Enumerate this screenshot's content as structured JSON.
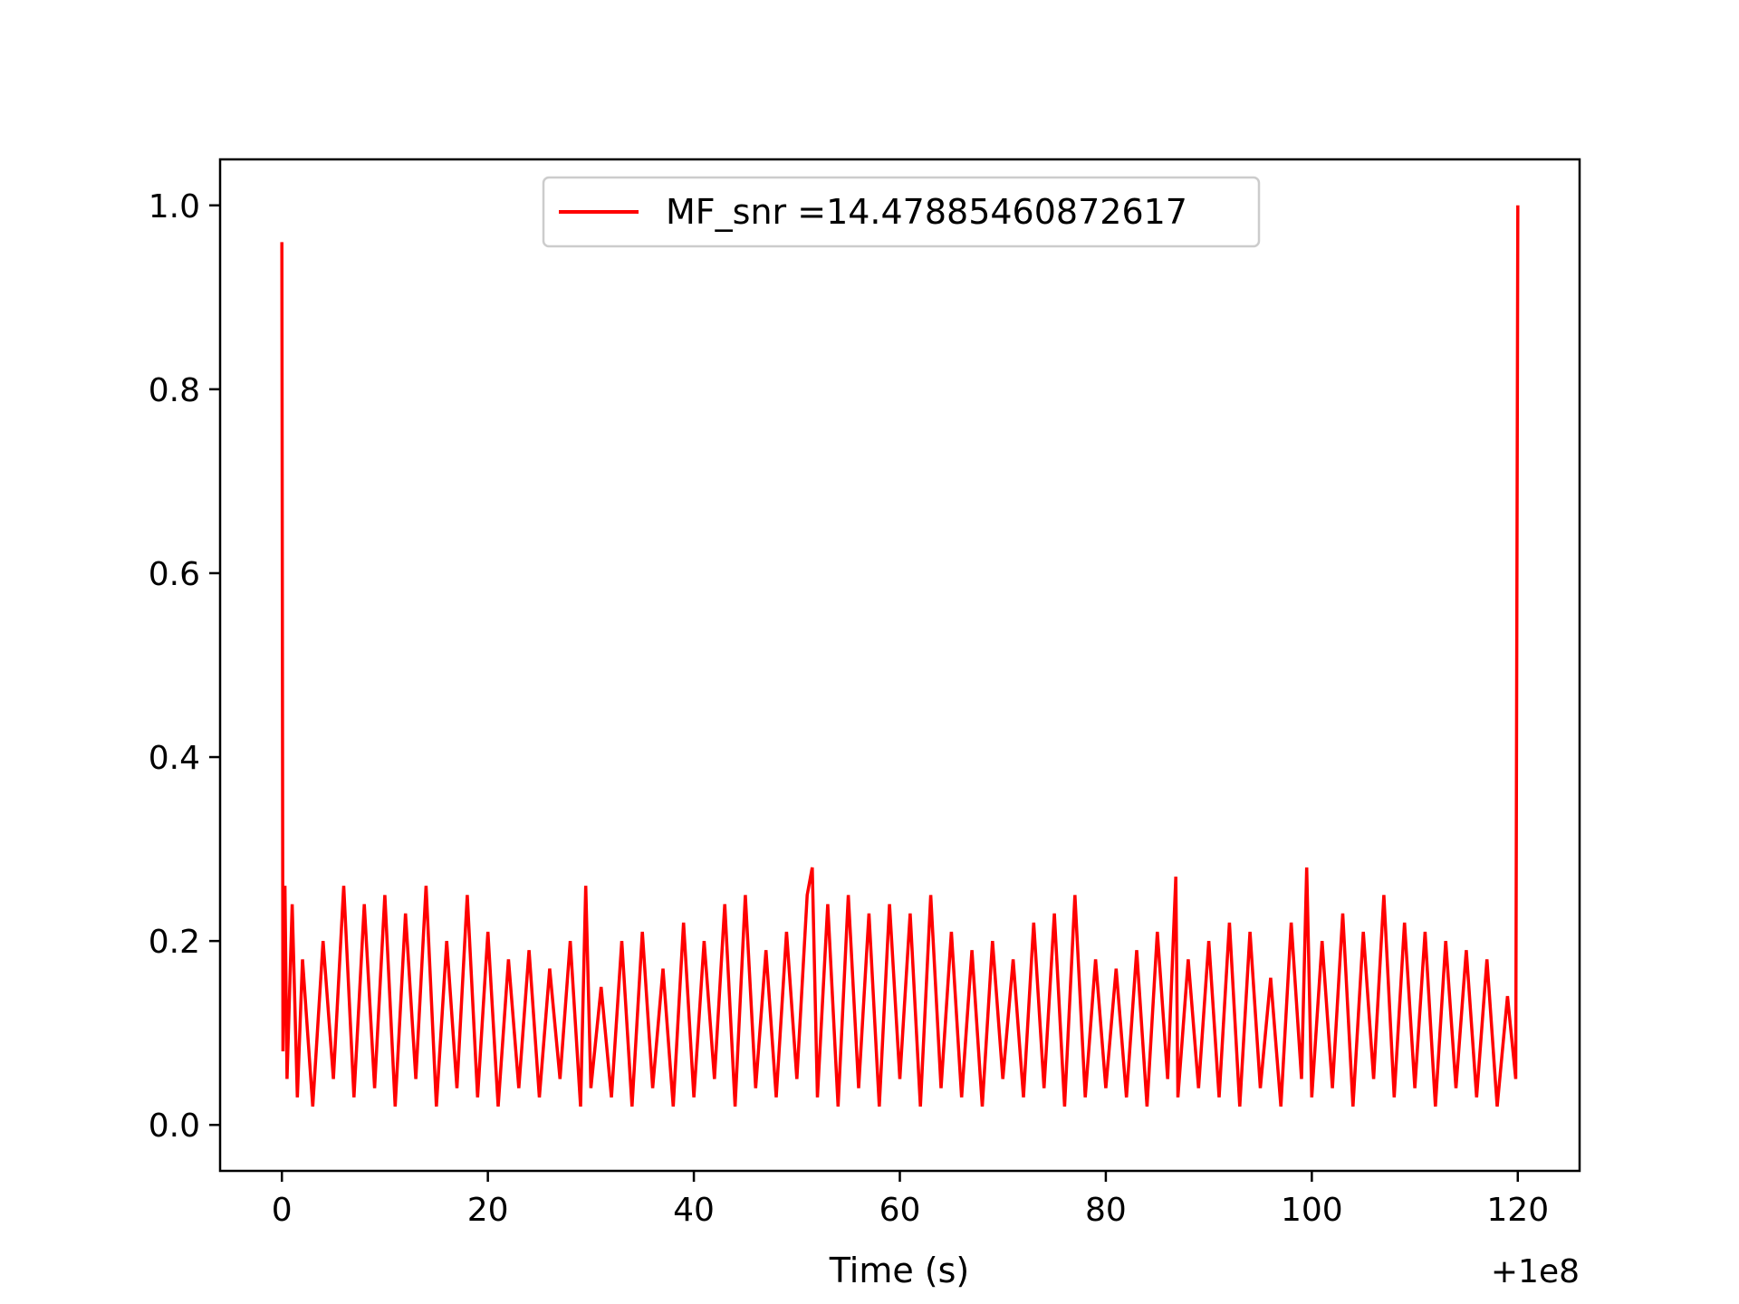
{
  "chart_data": {
    "type": "line",
    "title": "",
    "xlabel": "Time (s)",
    "ylabel": "",
    "x_offset_label": "+1e8",
    "xlim": [
      -6,
      126
    ],
    "ylim": [
      -0.05,
      1.05
    ],
    "xticks": [
      0,
      20,
      40,
      60,
      80,
      100,
      120
    ],
    "xtick_labels": [
      "0",
      "20",
      "40",
      "60",
      "80",
      "100",
      "120"
    ],
    "yticks": [
      0.0,
      0.2,
      0.4,
      0.6,
      0.8,
      1.0
    ],
    "ytick_labels": [
      "0.0",
      "0.2",
      "0.4",
      "0.6",
      "0.8",
      "1.0"
    ],
    "grid": false,
    "legend_position": "top-center",
    "series": [
      {
        "name": "MF_snr =14.47885460872617",
        "color": "#ff0000",
        "x": [
          0,
          0.1,
          0.3,
          0.5,
          1,
          1.5,
          2,
          3,
          4,
          5,
          6,
          7,
          8,
          9,
          10,
          11,
          12,
          13,
          14,
          15,
          16,
          17,
          18,
          19,
          20,
          21,
          22,
          23,
          24,
          25,
          26,
          27,
          28,
          29,
          29.5,
          30,
          31,
          32,
          33,
          34,
          35,
          36,
          37,
          38,
          39,
          40,
          41,
          42,
          43,
          44,
          45,
          46,
          47,
          48,
          49,
          50,
          51,
          51.5,
          52,
          53,
          54,
          55,
          56,
          57,
          58,
          59,
          60,
          61,
          62,
          63,
          64,
          65,
          66,
          67,
          68,
          69,
          70,
          71,
          72,
          73,
          74,
          75,
          76,
          77,
          78,
          79,
          80,
          81,
          82,
          83,
          84,
          85,
          86,
          86.8,
          87,
          88,
          89,
          90,
          91,
          92,
          93,
          94,
          95,
          96,
          97,
          98,
          99,
          99.5,
          100,
          101,
          102,
          103,
          104,
          105,
          106,
          107,
          108,
          109,
          110,
          111,
          112,
          113,
          114,
          115,
          116,
          117,
          118,
          119,
          119.8,
          120
        ],
        "y": [
          0.96,
          0.08,
          0.26,
          0.05,
          0.24,
          0.03,
          0.18,
          0.02,
          0.2,
          0.05,
          0.26,
          0.03,
          0.24,
          0.04,
          0.25,
          0.02,
          0.23,
          0.05,
          0.26,
          0.02,
          0.2,
          0.04,
          0.25,
          0.03,
          0.21,
          0.02,
          0.18,
          0.04,
          0.19,
          0.03,
          0.17,
          0.05,
          0.2,
          0.02,
          0.26,
          0.04,
          0.15,
          0.03,
          0.2,
          0.02,
          0.21,
          0.04,
          0.17,
          0.02,
          0.22,
          0.03,
          0.2,
          0.05,
          0.24,
          0.02,
          0.25,
          0.04,
          0.19,
          0.03,
          0.21,
          0.05,
          0.25,
          0.28,
          0.03,
          0.24,
          0.02,
          0.25,
          0.04,
          0.23,
          0.02,
          0.24,
          0.05,
          0.23,
          0.02,
          0.25,
          0.04,
          0.21,
          0.03,
          0.19,
          0.02,
          0.2,
          0.05,
          0.18,
          0.03,
          0.22,
          0.04,
          0.23,
          0.02,
          0.25,
          0.03,
          0.18,
          0.04,
          0.17,
          0.03,
          0.19,
          0.02,
          0.21,
          0.05,
          0.27,
          0.03,
          0.18,
          0.04,
          0.2,
          0.03,
          0.22,
          0.02,
          0.21,
          0.04,
          0.16,
          0.02,
          0.22,
          0.05,
          0.28,
          0.03,
          0.2,
          0.04,
          0.23,
          0.02,
          0.21,
          0.05,
          0.25,
          0.03,
          0.22,
          0.04,
          0.21,
          0.02,
          0.2,
          0.04,
          0.19,
          0.03,
          0.18,
          0.02,
          0.14,
          0.05,
          1.0
        ]
      }
    ]
  }
}
